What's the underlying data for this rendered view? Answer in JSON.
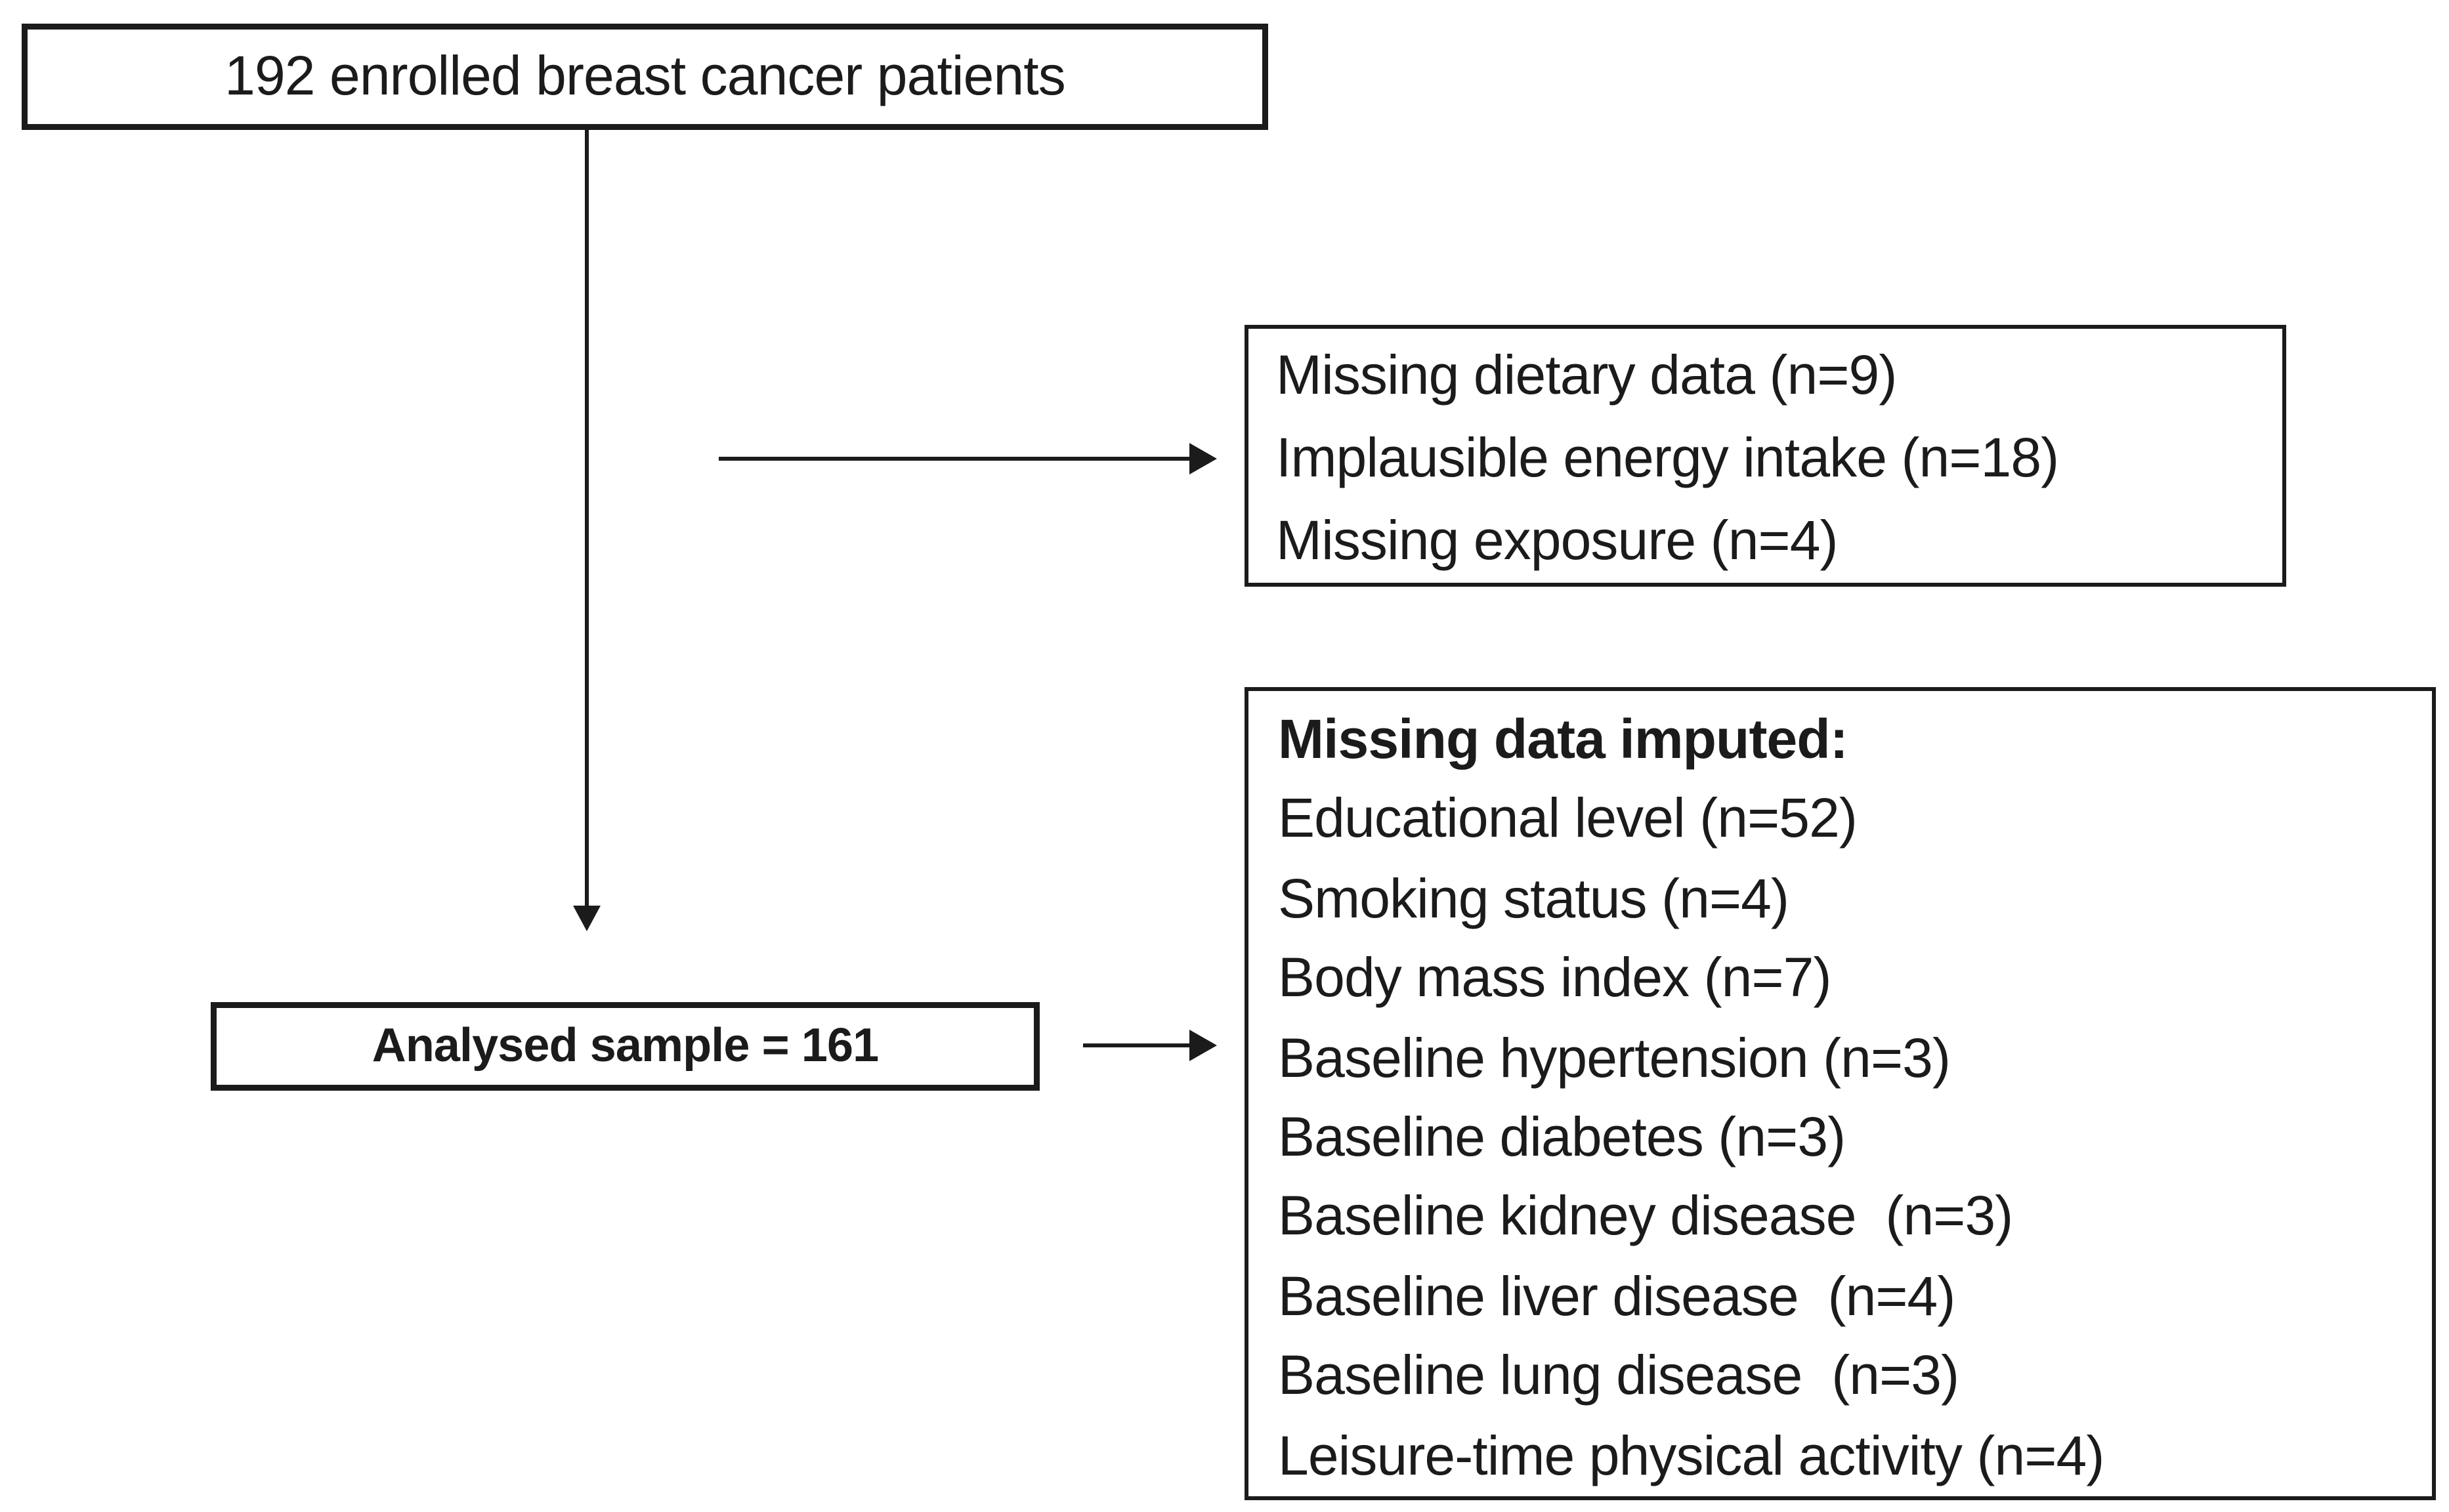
{
  "figure": {
    "background_color": "#ffffff",
    "line_color": "#1b1b1b",
    "text_color": "#1b1b1b",
    "enrolled_box": {
      "text": "192 enrolled breast cancer patients"
    },
    "exclusion_box": {
      "lines": [
        "Missing dietary data (n=9)",
        "Implausible energy intake (n=18)",
        "Missing exposure (n=4)"
      ]
    },
    "analysed_box": {
      "text": "Analysed sample = 161"
    },
    "imputed_box": {
      "heading": "Missing data imputed:",
      "lines": [
        "Educational level (n=52)",
        "Smoking status (n=4)",
        "Body mass index (n=7)",
        "Baseline hypertension (n=3)",
        "Baseline diabetes (n=3)",
        "Baseline kidney disease  (n=3)",
        "Baseline liver disease  (n=4)",
        "Baseline lung disease  (n=3)",
        "Leisure-time physical activity (n=4)"
      ]
    }
  }
}
